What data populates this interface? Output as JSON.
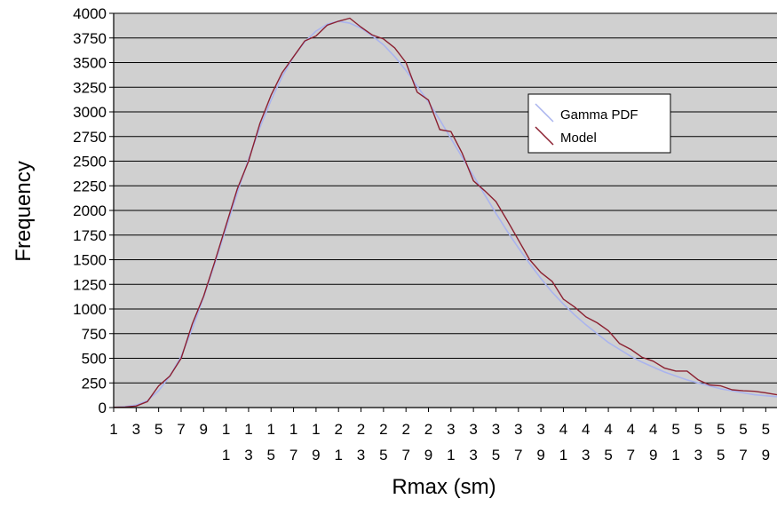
{
  "chart_data": {
    "type": "line",
    "xlabel": "Rmax (sm)",
    "ylabel": "Frequency",
    "ylim": [
      0,
      4000
    ],
    "ytick_step": 250,
    "x": [
      1,
      2,
      3,
      4,
      5,
      6,
      7,
      8,
      9,
      10,
      11,
      12,
      13,
      14,
      15,
      16,
      17,
      18,
      19,
      20,
      21,
      22,
      23,
      24,
      25,
      26,
      27,
      28,
      29,
      30,
      31,
      32,
      33,
      34,
      35,
      36,
      37,
      38,
      39,
      40,
      41,
      42,
      43,
      44,
      45,
      46,
      47,
      48,
      49,
      50,
      51,
      52,
      53,
      54,
      55,
      56,
      57,
      58,
      59,
      60
    ],
    "xtick_labels": [
      {
        "line1": "1",
        "line2": ""
      },
      {
        "line1": "3",
        "line2": ""
      },
      {
        "line1": "5",
        "line2": ""
      },
      {
        "line1": "7",
        "line2": ""
      },
      {
        "line1": "9",
        "line2": ""
      },
      {
        "line1": "1",
        "line2": "1"
      },
      {
        "line1": "1",
        "line2": "3"
      },
      {
        "line1": "1",
        "line2": "5"
      },
      {
        "line1": "1",
        "line2": "7"
      },
      {
        "line1": "1",
        "line2": "9"
      },
      {
        "line1": "2",
        "line2": "1"
      },
      {
        "line1": "2",
        "line2": "3"
      },
      {
        "line1": "2",
        "line2": "5"
      },
      {
        "line1": "2",
        "line2": "7"
      },
      {
        "line1": "2",
        "line2": "9"
      },
      {
        "line1": "3",
        "line2": "1"
      },
      {
        "line1": "3",
        "line2": "3"
      },
      {
        "line1": "3",
        "line2": "5"
      },
      {
        "line1": "3",
        "line2": "7"
      },
      {
        "line1": "3",
        "line2": "9"
      },
      {
        "line1": "4",
        "line2": "1"
      },
      {
        "line1": "4",
        "line2": "3"
      },
      {
        "line1": "4",
        "line2": "5"
      },
      {
        "line1": "4",
        "line2": "7"
      },
      {
        "line1": "4",
        "line2": "9"
      },
      {
        "line1": "5",
        "line2": "1"
      },
      {
        "line1": "5",
        "line2": "3"
      },
      {
        "line1": "5",
        "line2": "5"
      },
      {
        "line1": "5",
        "line2": "7"
      },
      {
        "line1": "5",
        "line2": "9"
      }
    ],
    "series": [
      {
        "name": "Gamma PDF",
        "color": "#aab4ee",
        "values": [
          2,
          8,
          25,
          70,
          170,
          320,
          520,
          800,
          1120,
          1460,
          1820,
          2180,
          2520,
          2840,
          3120,
          3360,
          3560,
          3710,
          3820,
          3890,
          3920,
          3900,
          3850,
          3770,
          3680,
          3560,
          3420,
          3260,
          3100,
          2920,
          2730,
          2540,
          2350,
          2160,
          1970,
          1790,
          1620,
          1460,
          1310,
          1170,
          1050,
          940,
          840,
          750,
          660,
          590,
          520,
          460,
          410,
          360,
          320,
          280,
          250,
          220,
          190,
          170,
          150,
          130,
          120,
          110
        ]
      },
      {
        "name": "Model",
        "color": "#8b2030",
        "values": [
          3,
          5,
          15,
          60,
          220,
          320,
          500,
          850,
          1130,
          1480,
          1850,
          2220,
          2500,
          2880,
          3170,
          3400,
          3560,
          3720,
          3770,
          3880,
          3920,
          3950,
          3860,
          3780,
          3740,
          3650,
          3500,
          3200,
          3120,
          2820,
          2800,
          2580,
          2300,
          2200,
          2090,
          1900,
          1700,
          1500,
          1370,
          1280,
          1100,
          1020,
          920,
          860,
          780,
          650,
          590,
          510,
          470,
          400,
          370,
          370,
          280,
          230,
          220,
          180,
          170,
          165,
          150,
          130
        ]
      }
    ]
  }
}
